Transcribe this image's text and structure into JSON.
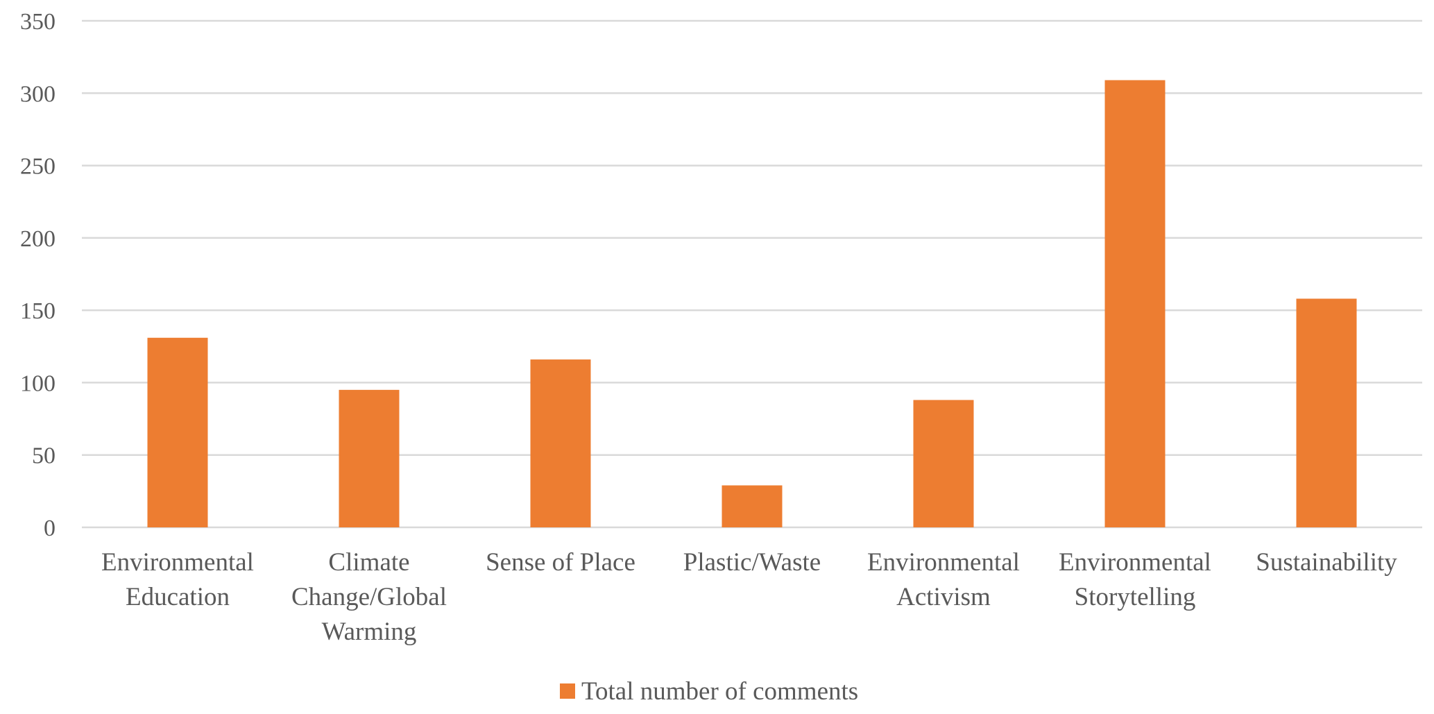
{
  "chart_data": {
    "type": "bar",
    "categories": [
      [
        "Environmental",
        "Education"
      ],
      [
        "Climate",
        "Change/Global",
        "Warming"
      ],
      [
        "Sense of Place"
      ],
      [
        "Plastic/Waste"
      ],
      [
        "Environmental",
        "Activism"
      ],
      [
        "Environmental",
        "Storytelling"
      ],
      [
        "Sustainability"
      ]
    ],
    "series": [
      {
        "name": "Total number of comments",
        "color": "#ed7d31",
        "values": [
          131,
          95,
          116,
          29,
          88,
          309,
          158
        ]
      }
    ],
    "y_ticks": [
      "0",
      "50",
      "100",
      "150",
      "200",
      "250",
      "300",
      "350"
    ],
    "ylim": [
      0,
      350
    ],
    "grid": true,
    "legend": "bottom-center"
  }
}
